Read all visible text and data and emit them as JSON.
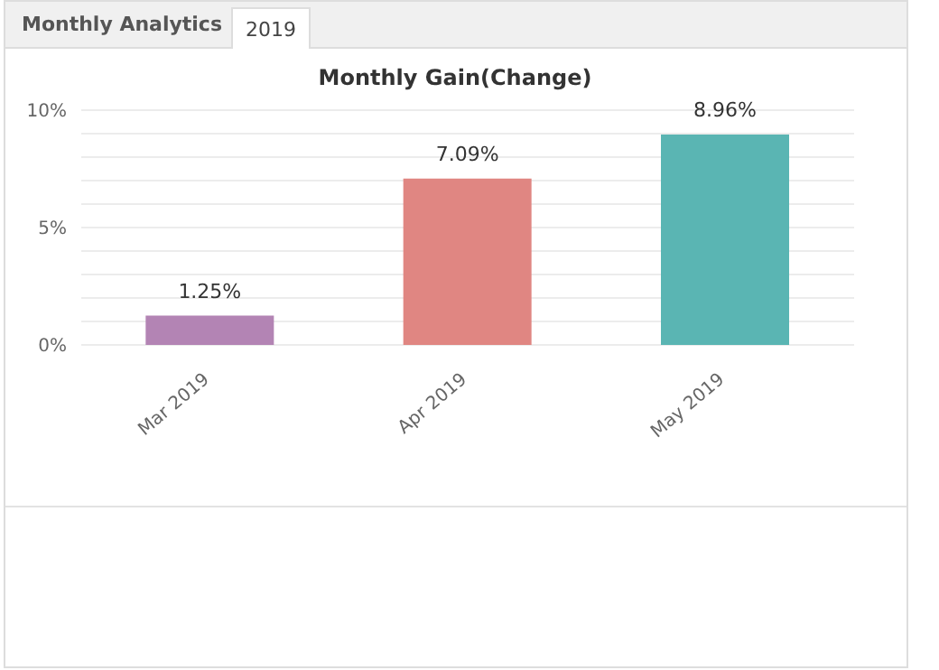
{
  "chart_data": {
    "type": "bar",
    "title": "Monthly Gain(Change)",
    "annotations": [
      "Monthly Analytics",
      "2019"
    ],
    "categories": [
      "Mar 2019",
      "Apr 2019",
      "May 2019"
    ],
    "values": [
      1.25,
      7.09,
      8.96
    ],
    "colors": [
      "#b384b4",
      "#e08682",
      "#5ab5b3"
    ],
    "value_labels": [
      "1.25%",
      "7.09%",
      "8.96%"
    ],
    "ylim": [
      0,
      10
    ],
    "yticks": [
      {
        "value": 0,
        "label": "0%"
      },
      {
        "value": 1,
        "label": null
      },
      {
        "value": 2,
        "label": null
      },
      {
        "value": 3,
        "label": null
      },
      {
        "value": 4,
        "label": null
      },
      {
        "value": 5,
        "label": "5%"
      },
      {
        "value": 6,
        "label": null
      },
      {
        "value": 7,
        "label": null
      },
      {
        "value": 8,
        "label": null
      },
      {
        "value": 9,
        "label": null
      },
      {
        "value": 10,
        "label": "10%"
      }
    ],
    "grid": "y"
  }
}
